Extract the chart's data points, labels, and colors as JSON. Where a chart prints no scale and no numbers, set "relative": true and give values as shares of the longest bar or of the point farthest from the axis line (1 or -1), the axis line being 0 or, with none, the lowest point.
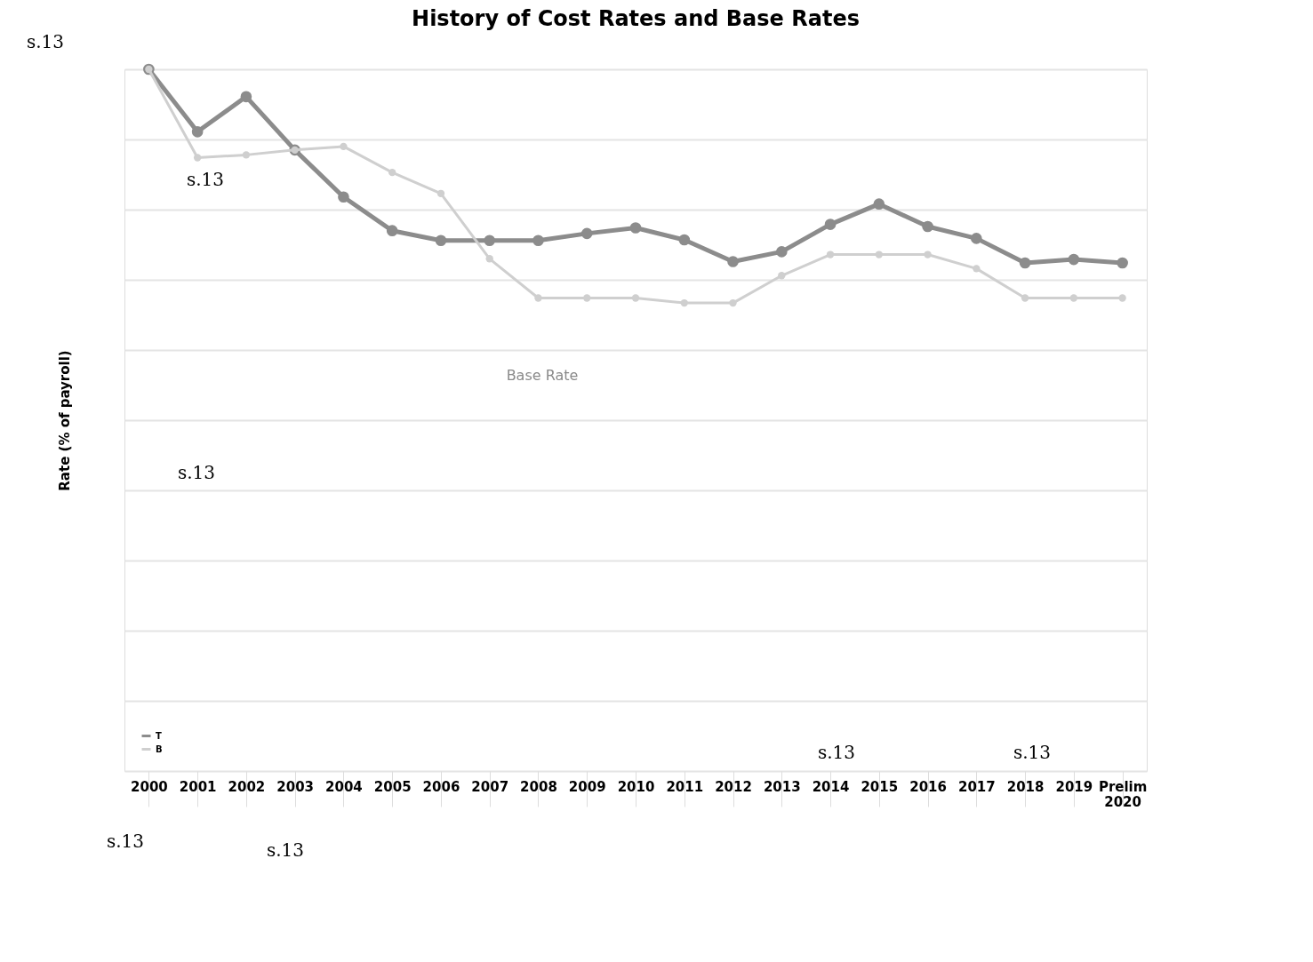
{
  "chart_data": {
    "type": "line",
    "title": "History of Cost Rates and Base Rates",
    "ylabel": "Rate (% of payroll)",
    "relative": true,
    "categories": [
      "2000",
      "2001",
      "2002",
      "2003",
      "2004",
      "2005",
      "2006",
      "2007",
      "2008",
      "2009",
      "2010",
      "2011",
      "2012",
      "2013",
      "2014",
      "2015",
      "2016",
      "2017",
      "2018",
      "2019",
      "Prelim 2020"
    ],
    "series": [
      {
        "name": "T",
        "color": "#8c8c8c",
        "values": [
          1.0,
          0.911,
          0.961,
          0.885,
          0.818,
          0.77,
          0.756,
          0.756,
          0.756,
          0.766,
          0.774,
          0.757,
          0.726,
          0.74,
          0.779,
          0.808,
          0.776,
          0.759,
          0.724,
          0.729,
          0.724
        ]
      },
      {
        "name": "B",
        "color": "#cfcfcf",
        "values": [
          1.0,
          0.874,
          0.878,
          0.885,
          0.89,
          0.853,
          0.823,
          0.73,
          0.674,
          0.674,
          0.674,
          0.667,
          0.667,
          0.706,
          0.736,
          0.736,
          0.736,
          0.716,
          0.674,
          0.674,
          0.674
        ]
      }
    ],
    "annotations": [
      "Base Rate",
      "s.13",
      "s.13",
      "s.13",
      "s.13",
      "s.13",
      "s.13",
      "s.13"
    ],
    "grid": "y",
    "legend": "bottom left",
    "marker": "circle",
    "line_style": "solid"
  }
}
